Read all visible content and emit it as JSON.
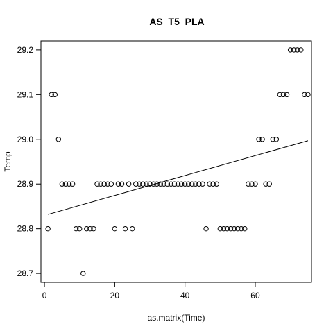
{
  "chart_data": {
    "type": "scatter",
    "title": "AS_T5_PLA",
    "xlabel": "as.matrix(Time)",
    "ylabel": "Temp",
    "xlim": [
      -1,
      76
    ],
    "ylim": [
      28.68,
      29.22
    ],
    "x_ticks": [
      0,
      20,
      40,
      60
    ],
    "y_ticks": [
      28.7,
      28.8,
      28.9,
      29.0,
      29.1,
      29.2
    ],
    "x_tick_labels": [
      "0",
      "20",
      "40",
      "60"
    ],
    "y_tick_labels": [
      "28.7",
      "28.8",
      "28.9",
      "29.0",
      "29.1",
      "29.2"
    ],
    "grid": false,
    "points": [
      [
        1,
        28.8
      ],
      [
        2,
        29.1
      ],
      [
        3,
        29.1
      ],
      [
        4,
        29.0
      ],
      [
        5,
        28.9
      ],
      [
        6,
        28.9
      ],
      [
        7,
        28.9
      ],
      [
        8,
        28.9
      ],
      [
        9,
        28.8
      ],
      [
        10,
        28.8
      ],
      [
        11,
        28.7
      ],
      [
        12,
        28.8
      ],
      [
        13,
        28.8
      ],
      [
        14,
        28.8
      ],
      [
        15,
        28.9
      ],
      [
        16,
        28.9
      ],
      [
        17,
        28.9
      ],
      [
        18,
        28.9
      ],
      [
        19,
        28.9
      ],
      [
        20,
        28.8
      ],
      [
        21,
        28.9
      ],
      [
        22,
        28.9
      ],
      [
        23,
        28.8
      ],
      [
        24,
        28.9
      ],
      [
        25,
        28.8
      ],
      [
        26,
        28.9
      ],
      [
        27,
        28.9
      ],
      [
        28,
        28.9
      ],
      [
        29,
        28.9
      ],
      [
        30,
        28.9
      ],
      [
        31,
        28.9
      ],
      [
        32,
        28.9
      ],
      [
        33,
        28.9
      ],
      [
        34,
        28.9
      ],
      [
        35,
        28.9
      ],
      [
        36,
        28.9
      ],
      [
        37,
        28.9
      ],
      [
        38,
        28.9
      ],
      [
        39,
        28.9
      ],
      [
        40,
        28.9
      ],
      [
        41,
        28.9
      ],
      [
        42,
        28.9
      ],
      [
        43,
        28.9
      ],
      [
        44,
        28.9
      ],
      [
        45,
        28.9
      ],
      [
        46,
        28.8
      ],
      [
        47,
        28.9
      ],
      [
        48,
        28.9
      ],
      [
        49,
        28.9
      ],
      [
        50,
        28.8
      ],
      [
        51,
        28.8
      ],
      [
        52,
        28.8
      ],
      [
        53,
        28.8
      ],
      [
        54,
        28.8
      ],
      [
        55,
        28.8
      ],
      [
        56,
        28.8
      ],
      [
        57,
        28.8
      ],
      [
        58,
        28.9
      ],
      [
        59,
        28.9
      ],
      [
        60,
        28.9
      ],
      [
        61,
        29.0
      ],
      [
        62,
        29.0
      ],
      [
        63,
        28.9
      ],
      [
        64,
        28.9
      ],
      [
        65,
        29.0
      ],
      [
        66,
        29.0
      ],
      [
        67,
        29.1
      ],
      [
        68,
        29.1
      ],
      [
        69,
        29.1
      ],
      [
        70,
        29.2
      ],
      [
        71,
        29.2
      ],
      [
        72,
        29.2
      ],
      [
        73,
        29.2
      ],
      [
        74,
        29.1
      ],
      [
        75,
        29.1
      ]
    ],
    "trend_line": {
      "x": [
        1,
        75
      ],
      "y": [
        28.832,
        28.997
      ]
    }
  }
}
